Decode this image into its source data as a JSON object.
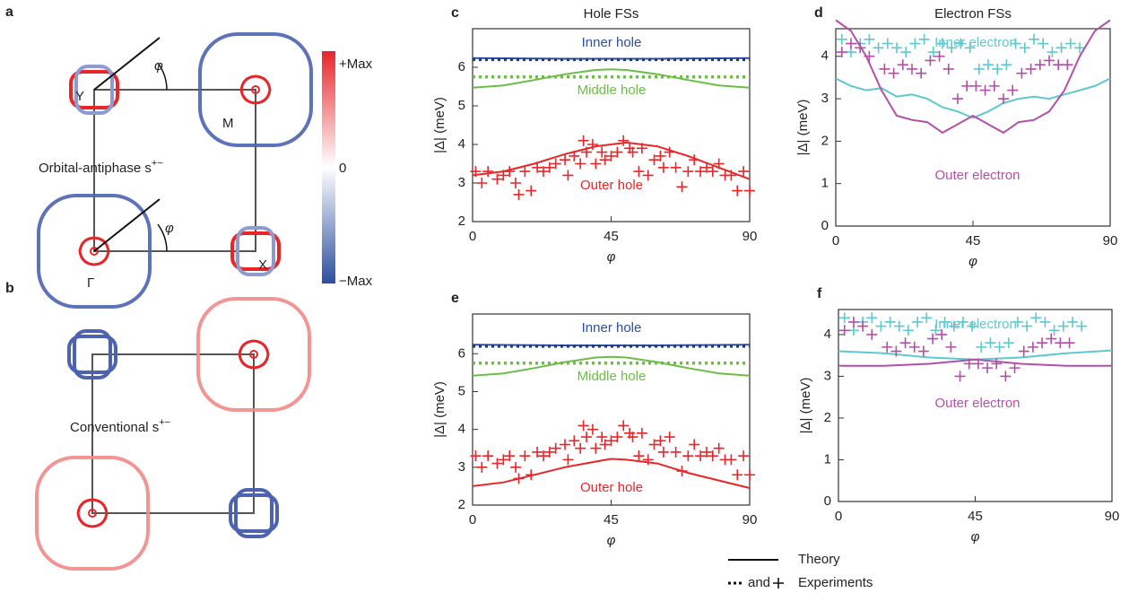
{
  "diagrams": {
    "a": {
      "label": "a",
      "points": [
        "Y",
        "M",
        "Γ",
        "X"
      ],
      "angles": [
        "φ",
        "φ"
      ],
      "caption": {
        "text": "Orbital-antiphase s",
        "superscript": "+−"
      }
    },
    "b": {
      "label": "b",
      "caption": {
        "text": "Conventional s",
        "superscript": "+−"
      }
    },
    "colorbar": [
      "+Max",
      "0",
      "−Max"
    ]
  },
  "legend": {
    "theory": "Theory",
    "and": "and",
    "experiments": "Experiments"
  },
  "chart_data": [
    {
      "type": "line",
      "label": "c",
      "title": "Hole FSs",
      "xlabel": "φ",
      "ylabel": "|Δ| (meV)",
      "xlim": [
        0,
        90
      ],
      "xticks": [
        0,
        45,
        90
      ],
      "ylim": [
        2,
        7
      ],
      "yticks": [
        2,
        3,
        4,
        5,
        6
      ],
      "series": [
        {
          "name": "Inner hole",
          "color": "#2b4ea0",
          "theory": {
            "x": [
              0,
              15,
              30,
              45,
              60,
              75,
              90
            ],
            "values": [
              6.24,
              6.23,
              6.22,
              6.22,
              6.22,
              6.23,
              6.24
            ]
          },
          "experiment": {
            "style": "dotted",
            "color": "#1f3a80",
            "x": [
              0,
              90
            ],
            "values": [
              6.2,
              6.2
            ]
          }
        },
        {
          "name": "Middle hole",
          "color": "#6cbd45",
          "theory": {
            "x": [
              0,
              10,
              20,
              30,
              40,
              45,
              50,
              60,
              70,
              80,
              90
            ],
            "values": [
              5.47,
              5.53,
              5.67,
              5.82,
              5.93,
              5.95,
              5.93,
              5.82,
              5.67,
              5.53,
              5.47
            ]
          },
          "experiment": {
            "style": "dotted",
            "color": "#6cbd45",
            "x": [
              0,
              90
            ],
            "values": [
              5.75,
              5.75
            ]
          }
        },
        {
          "name": "Outer hole",
          "color": "#e8262a",
          "theory": {
            "x": [
              0,
              10,
              20,
              30,
              40,
              50,
              60,
              70,
              80,
              90
            ],
            "values": [
              3.2,
              3.3,
              3.5,
              3.75,
              3.95,
              4.05,
              3.95,
              3.7,
              3.4,
              3.1
            ]
          },
          "experiment": {
            "style": "cross",
            "color": "#e8262a",
            "x": [
              1,
              3,
              5,
              8,
              10,
              12,
              14,
              15,
              17,
              19,
              21,
              23,
              25,
              27,
              30,
              31,
              33,
              35,
              36,
              37,
              39,
              40,
              42,
              43,
              45,
              47,
              49,
              51,
              52,
              54,
              55,
              57,
              59,
              61,
              62,
              64,
              66,
              68,
              70,
              72,
              74,
              76,
              78,
              80,
              82,
              84,
              86,
              88,
              90
            ],
            "values": [
              3.3,
              3.0,
              3.3,
              3.1,
              3.2,
              3.3,
              3.0,
              2.7,
              3.3,
              2.8,
              3.4,
              3.3,
              3.4,
              3.5,
              3.6,
              3.2,
              3.7,
              3.5,
              4.1,
              3.8,
              4.0,
              3.5,
              3.8,
              3.6,
              3.7,
              3.8,
              4.1,
              3.9,
              3.8,
              3.3,
              3.9,
              3.2,
              3.6,
              3.7,
              3.4,
              3.8,
              3.4,
              2.9,
              3.3,
              3.6,
              3.3,
              3.4,
              3.3,
              3.5,
              3.2,
              3.2,
              2.8,
              3.3,
              2.8
            ]
          }
        }
      ]
    },
    {
      "type": "line",
      "label": "d",
      "title": "Electron FSs",
      "xlabel": "φ",
      "ylabel": "|Δ| (meV)",
      "xlim": [
        0,
        90
      ],
      "xticks": [
        0,
        45,
        90
      ],
      "ylim": [
        0,
        4.65
      ],
      "yticks": [
        0,
        1,
        2,
        3,
        4
      ],
      "series": [
        {
          "name": "Inner electron",
          "color": "#5ec8d0",
          "theory": {
            "x": [
              0,
              5,
              10,
              15,
              20,
              25,
              30,
              35,
              40,
              45,
              50,
              55,
              60,
              65,
              70,
              75,
              80,
              85,
              90
            ],
            "values": [
              3.48,
              3.3,
              3.2,
              3.25,
              3.05,
              3.1,
              3.0,
              2.8,
              2.7,
              2.55,
              2.7,
              2.9,
              3.0,
              3.05,
              3.0,
              3.1,
              3.2,
              3.3,
              3.48
            ]
          },
          "experiment": {
            "style": "cross",
            "color": "#5ec8d0",
            "x": [
              2,
              5,
              8,
              11,
              14,
              17,
              20,
              23,
              26,
              29,
              32,
              35,
              38,
              41,
              44,
              47,
              50,
              53,
              56,
              59,
              62,
              65,
              68,
              71,
              74,
              77,
              80
            ],
            "values": [
              4.4,
              4.1,
              4.3,
              4.4,
              4.2,
              4.3,
              4.2,
              4.1,
              4.3,
              4.4,
              4.1,
              4.3,
              4.2,
              4.3,
              4.2,
              3.7,
              3.8,
              3.7,
              3.8,
              4.3,
              4.2,
              4.4,
              4.3,
              4.1,
              4.2,
              4.3,
              4.2
            ]
          }
        },
        {
          "name": "Outer electron",
          "color": "#b44fa7",
          "theory": {
            "x": [
              0,
              5,
              10,
              15,
              20,
              25,
              30,
              35,
              40,
              45,
              50,
              55,
              60,
              65,
              70,
              75,
              80,
              85,
              90
            ],
            "values": [
              4.85,
              4.6,
              4.0,
              3.2,
              2.6,
              2.5,
              2.45,
              2.2,
              2.4,
              2.6,
              2.4,
              2.2,
              2.45,
              2.5,
              2.7,
              3.2,
              4.0,
              4.6,
              4.85
            ]
          },
          "experiment": {
            "style": "cross",
            "color": "#b44fa7",
            "x": [
              2,
              5,
              8,
              11,
              16,
              19,
              22,
              25,
              28,
              31,
              34,
              37,
              40,
              43,
              46,
              49,
              52,
              55,
              58,
              61,
              64,
              67,
              70,
              73,
              76
            ],
            "values": [
              4.1,
              4.3,
              4.2,
              4.0,
              3.7,
              3.6,
              3.8,
              3.7,
              3.6,
              3.9,
              4.0,
              3.7,
              3.0,
              3.3,
              3.3,
              3.2,
              3.3,
              3.0,
              3.2,
              3.6,
              3.7,
              3.8,
              3.9,
              3.8,
              3.8
            ]
          }
        }
      ]
    },
    {
      "type": "line",
      "label": "e",
      "xlabel": "φ",
      "ylabel": "|Δ| (meV)",
      "xlim": [
        0,
        90
      ],
      "xticks": [
        0,
        45,
        90
      ],
      "ylim": [
        2,
        7.05
      ],
      "yticks": [
        2,
        3,
        4,
        5,
        6
      ],
      "series": [
        {
          "name": "Inner hole",
          "color": "#2b4ea0",
          "theory": {
            "x": [
              0,
              15,
              30,
              45,
              60,
              75,
              90
            ],
            "values": [
              6.24,
              6.23,
              6.22,
              6.22,
              6.22,
              6.23,
              6.24
            ]
          },
          "experiment": {
            "style": "dotted",
            "color": "#1f3a80",
            "x": [
              0,
              90
            ],
            "values": [
              6.2,
              6.2
            ]
          }
        },
        {
          "name": "Middle hole",
          "color": "#6cbd45",
          "theory": {
            "x": [
              0,
              10,
              20,
              30,
              40,
              45,
              50,
              60,
              70,
              80,
              90
            ],
            "values": [
              5.42,
              5.48,
              5.62,
              5.78,
              5.9,
              5.92,
              5.9,
              5.78,
              5.62,
              5.48,
              5.42
            ]
          },
          "experiment": {
            "style": "dotted",
            "color": "#6cbd45",
            "x": [
              0,
              90
            ],
            "values": [
              5.75,
              5.75
            ]
          }
        },
        {
          "name": "Outer hole",
          "color": "#e8262a",
          "theory": {
            "x": [
              0,
              10,
              20,
              30,
              40,
              45,
              50,
              60,
              70,
              80,
              90
            ],
            "values": [
              2.5,
              2.6,
              2.8,
              3.0,
              3.15,
              3.22,
              3.2,
              3.1,
              2.85,
              2.65,
              2.45
            ]
          },
          "experiment": {
            "style": "cross",
            "color": "#e8262a",
            "x": [
              1,
              3,
              5,
              8,
              10,
              12,
              14,
              15,
              17,
              19,
              21,
              23,
              25,
              27,
              30,
              31,
              33,
              35,
              36,
              37,
              39,
              40,
              42,
              43,
              45,
              47,
              49,
              51,
              52,
              54,
              55,
              57,
              59,
              61,
              62,
              64,
              66,
              68,
              70,
              72,
              74,
              76,
              78,
              80,
              82,
              84,
              86,
              88,
              90
            ],
            "values": [
              3.3,
              3.0,
              3.3,
              3.1,
              3.2,
              3.3,
              3.0,
              2.7,
              3.3,
              2.8,
              3.4,
              3.3,
              3.4,
              3.5,
              3.6,
              3.2,
              3.7,
              3.5,
              4.1,
              3.8,
              4.0,
              3.5,
              3.8,
              3.6,
              3.7,
              3.8,
              4.1,
              3.9,
              3.8,
              3.3,
              3.9,
              3.2,
              3.6,
              3.7,
              3.4,
              3.8,
              3.4,
              2.9,
              3.3,
              3.6,
              3.3,
              3.4,
              3.3,
              3.5,
              3.2,
              3.2,
              2.8,
              3.3,
              2.8
            ]
          }
        }
      ]
    },
    {
      "type": "line",
      "label": "f",
      "xlabel": "φ",
      "ylabel": "|Δ| (meV)",
      "xlim": [
        0,
        90
      ],
      "xticks": [
        0,
        45,
        90
      ],
      "ylim": [
        0,
        4.6
      ],
      "yticks": [
        0,
        1,
        2,
        3,
        4
      ],
      "series": [
        {
          "name": "Inner electron",
          "color": "#5ec8d0",
          "theory": {
            "x": [
              0,
              15,
              30,
              45,
              60,
              75,
              90
            ],
            "values": [
              3.6,
              3.55,
              3.45,
              3.4,
              3.45,
              3.55,
              3.62
            ]
          },
          "experiment": {
            "style": "cross",
            "color": "#5ec8d0",
            "x": [
              2,
              5,
              8,
              11,
              14,
              17,
              20,
              23,
              26,
              29,
              32,
              35,
              38,
              41,
              44,
              47,
              50,
              53,
              56,
              59,
              62,
              65,
              68,
              71,
              74,
              77,
              80
            ],
            "values": [
              4.4,
              4.1,
              4.3,
              4.4,
              4.2,
              4.3,
              4.2,
              4.1,
              4.3,
              4.4,
              4.1,
              4.3,
              4.2,
              4.3,
              4.2,
              3.7,
              3.8,
              3.7,
              3.8,
              4.3,
              4.2,
              4.4,
              4.3,
              4.1,
              4.2,
              4.3,
              4.2
            ]
          }
        },
        {
          "name": "Outer electron",
          "color": "#b44fa7",
          "theory": {
            "x": [
              0,
              15,
              30,
              45,
              60,
              75,
              90
            ],
            "values": [
              3.25,
              3.25,
              3.3,
              3.4,
              3.3,
              3.25,
              3.25
            ]
          },
          "experiment": {
            "style": "cross",
            "color": "#b44fa7",
            "x": [
              2,
              5,
              8,
              11,
              16,
              19,
              22,
              25,
              28,
              31,
              34,
              37,
              40,
              43,
              46,
              49,
              52,
              55,
              58,
              61,
              64,
              67,
              70,
              73,
              76
            ],
            "values": [
              4.1,
              4.3,
              4.2,
              4.0,
              3.7,
              3.6,
              3.8,
              3.7,
              3.6,
              3.9,
              4.0,
              3.7,
              3.0,
              3.3,
              3.3,
              3.2,
              3.3,
              3.0,
              3.2,
              3.6,
              3.7,
              3.8,
              3.9,
              3.8,
              3.8
            ]
          }
        }
      ]
    }
  ]
}
